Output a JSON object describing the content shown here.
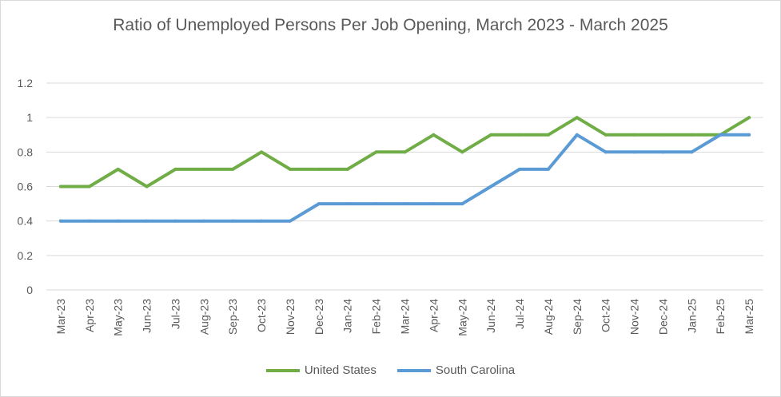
{
  "chart_data": {
    "type": "line",
    "title": "Ratio of Unemployed Persons Per Job Opening, March 2023 - March 2025",
    "xlabel": "",
    "ylabel": "",
    "ylim": [
      0,
      1.2
    ],
    "yticks": [
      "0",
      "0.2",
      "0.4",
      "0.6",
      "0.8",
      "1",
      "1.2"
    ],
    "grid": true,
    "legend_position": "bottom",
    "categories": [
      "Mar-23",
      "Apr-23",
      "May-23",
      "Jun-23",
      "Jul-23",
      "Aug-23",
      "Sep-23",
      "Oct-23",
      "Nov-23",
      "Dec-23",
      "Jan-24",
      "Feb-24",
      "Mar-24",
      "Apr-24",
      "May-24",
      "Jun-24",
      "Jul-24",
      "Aug-24",
      "Sep-24",
      "Oct-24",
      "Nov-24",
      "Dec-24",
      "Jan-25",
      "Feb-25",
      "Mar-25"
    ],
    "series": [
      {
        "name": "United States",
        "color": "#70ad47",
        "values": [
          0.6,
          0.6,
          0.7,
          0.6,
          0.7,
          0.7,
          0.7,
          0.8,
          0.7,
          0.7,
          0.7,
          0.8,
          0.8,
          0.9,
          0.8,
          0.9,
          0.9,
          0.9,
          1.0,
          0.9,
          0.9,
          0.9,
          0.9,
          0.9,
          1.0
        ]
      },
      {
        "name": "South Carolina",
        "color": "#5b9bd5",
        "values": [
          0.4,
          0.4,
          0.4,
          0.4,
          0.4,
          0.4,
          0.4,
          0.4,
          0.4,
          0.5,
          0.5,
          0.5,
          0.5,
          0.5,
          0.5,
          0.6,
          0.7,
          0.7,
          0.9,
          0.8,
          0.8,
          0.8,
          0.8,
          0.9,
          0.9
        ]
      }
    ]
  }
}
